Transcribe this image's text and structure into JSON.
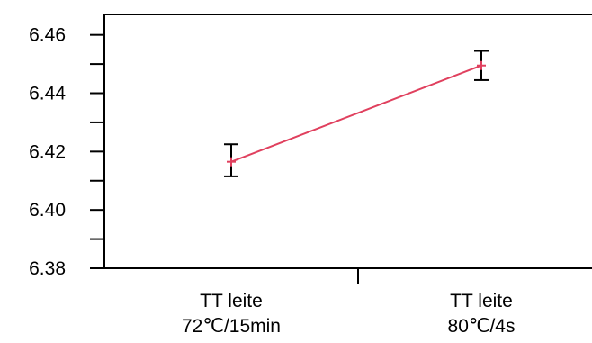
{
  "chart_data": {
    "type": "line",
    "title": "",
    "xlabel": "",
    "ylabel": "",
    "categories": [
      [
        "TT leite",
        "72℃/15min"
      ],
      [
        "TT leite",
        "80℃/4s"
      ]
    ],
    "series": [
      {
        "values": [
          6.4165,
          6.4495
        ],
        "error_low": [
          6.4115,
          6.4445
        ],
        "error_high": [
          6.4225,
          6.4545
        ],
        "color": "#e0405e",
        "marker": "plus"
      }
    ],
    "error_bar_color": "#000000",
    "ylim": [
      6.38,
      6.467
    ],
    "y_ticks": [
      "6.38",
      "6.40",
      "6.42",
      "6.44",
      "6.46"
    ],
    "y_tick_values": [
      6.38,
      6.4,
      6.42,
      6.44,
      6.46
    ],
    "y_minor_ticks": [
      6.39,
      6.41,
      6.43,
      6.45
    ],
    "grid": false,
    "legend": "none"
  }
}
